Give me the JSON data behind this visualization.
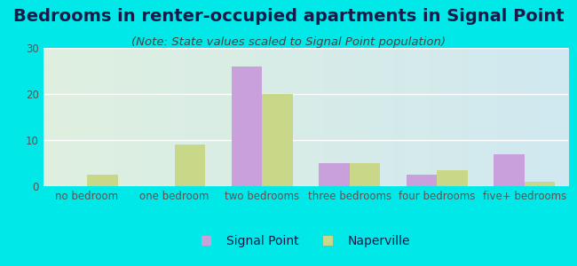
{
  "title": "Bedrooms in renter-occupied apartments in Signal Point",
  "subtitle": "(Note: State values scaled to Signal Point population)",
  "categories": [
    "no bedroom",
    "one bedroom",
    "two bedrooms",
    "three bedrooms",
    "four bedrooms",
    "five+ bedrooms"
  ],
  "signal_point": [
    0,
    0,
    26,
    5,
    2.5,
    7
  ],
  "naperville": [
    2.5,
    9,
    20,
    5,
    3.5,
    1
  ],
  "signal_color": "#c9a0dc",
  "naperville_color": "#c8d888",
  "background_outer": "#00e8e8",
  "background_inner_left": "#dff0e0",
  "background_inner_right": "#d0e8f0",
  "grid_color": "#ffffff",
  "ylim": [
    0,
    30
  ],
  "yticks": [
    0,
    10,
    20,
    30
  ],
  "bar_width": 0.35,
  "title_fontsize": 14,
  "subtitle_fontsize": 9.5,
  "legend_fontsize": 10,
  "tick_fontsize": 8.5,
  "title_color": "#1a1a4a",
  "subtitle_color": "#444444",
  "tick_color": "#555555",
  "legend_signal_label": "Signal Point",
  "legend_naperville_label": "Naperville"
}
